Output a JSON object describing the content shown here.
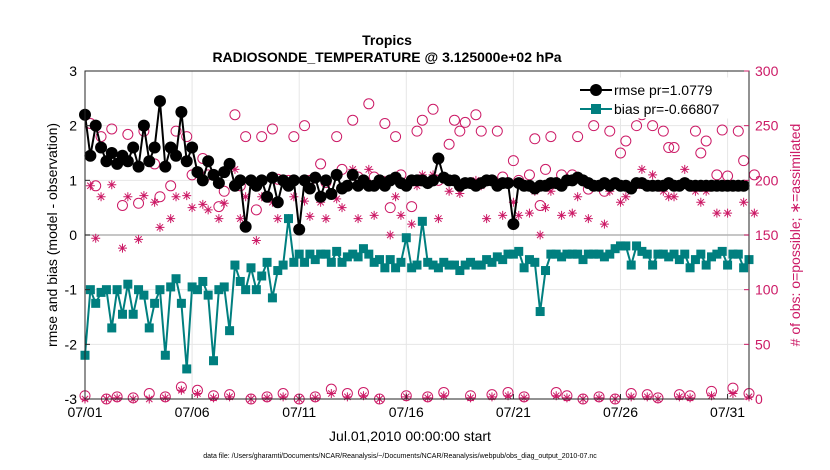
{
  "chart_data": {
    "type": "line",
    "title": "Tropics",
    "subtitle": "RADIOSONDE_TEMPERATURE @ 3.125000e+02 hPa",
    "xlabel": "Jul.01,2010 00:00:00 start",
    "ylabel": "rmse and bias (model - observation)",
    "ylabel_right": "# of obs: o=possible; ∗=assimilated",
    "footnote": "data file: /Users/gharamti/Documents/NCAR/Reanalysis/~/Documents/NCAR/Reanalysis/webpub/obs_diag_output_2010-07.nc",
    "xlim": [
      0,
      31
    ],
    "ylim": [
      -3,
      3
    ],
    "ylim_right": [
      0,
      300
    ],
    "x_ticks": [
      {
        "v": 0,
        "label": "07/01"
      },
      {
        "v": 5,
        "label": "07/06"
      },
      {
        "v": 10,
        "label": "07/11"
      },
      {
        "v": 15,
        "label": "07/16"
      },
      {
        "v": 20,
        "label": "07/21"
      },
      {
        "v": 25,
        "label": "07/26"
      },
      {
        "v": 30,
        "label": "07/31"
      }
    ],
    "y_ticks": [
      {
        "v": -3,
        "label": "-3"
      },
      {
        "v": -2,
        "label": "-2"
      },
      {
        "v": -1,
        "label": "-1"
      },
      {
        "v": 0,
        "label": "0"
      },
      {
        "v": 1,
        "label": "1"
      },
      {
        "v": 2,
        "label": "2"
      },
      {
        "v": 3,
        "label": "3"
      }
    ],
    "y_ticks_right": [
      {
        "v": 0,
        "label": "0"
      },
      {
        "v": 50,
        "label": "50"
      },
      {
        "v": 100,
        "label": "100"
      },
      {
        "v": 150,
        "label": "150"
      },
      {
        "v": 200,
        "label": "200"
      },
      {
        "v": 250,
        "label": "250"
      },
      {
        "v": 300,
        "label": "300"
      }
    ],
    "x_step": 0.25,
    "legend_position": "top-right",
    "grid": true,
    "colors": {
      "rmse": "#000000",
      "bias": "#007f7f",
      "obs": "#cc1a66",
      "zero": "#b3b3b3",
      "grid": "#e6e6e6"
    },
    "series": [
      {
        "name": "rmse pr=1.0779",
        "key": "rmse",
        "axis": "left",
        "values": [
          2.2,
          1.45,
          2.0,
          1.6,
          1.35,
          1.5,
          1.3,
          1.45,
          1.35,
          1.6,
          1.25,
          2.0,
          1.35,
          1.6,
          2.45,
          1.25,
          1.6,
          1.45,
          2.25,
          1.35,
          1.6,
          1.15,
          1.0,
          1.35,
          1.1,
          0.95,
          1.15,
          1.3,
          0.9,
          1.0,
          0.15,
          1.0,
          0.9,
          1.0,
          0.7,
          1.05,
          0.6,
          1.0,
          0.9,
          1.0,
          0.1,
          1.0,
          0.85,
          1.05,
          0.7,
          1.0,
          0.75,
          1.1,
          0.85,
          0.9,
          1.1,
          0.9,
          1.0,
          0.9,
          0.9,
          1.0,
          0.9,
          1.0,
          1.05,
          0.95,
          0.9,
          1.0,
          1.0,
          1.0,
          0.95,
          1.0,
          1.4,
          1.05,
          1.0,
          1.0,
          0.9,
          0.95,
          0.95,
          0.9,
          0.95,
          1.0,
          1.0,
          0.9,
          0.95,
          0.95,
          0.2,
          0.95,
          0.9,
          0.9,
          0.85,
          0.9,
          0.9,
          0.95,
          0.95,
          0.9,
          1.0,
          1.0,
          1.05,
          1.0,
          0.95,
          0.9,
          0.9,
          0.95,
          0.9,
          0.95,
          0.9,
          0.9,
          0.85,
          0.95,
          0.95,
          0.9,
          0.9,
          0.9,
          0.9,
          0.95,
          0.9,
          0.9,
          0.95,
          0.9,
          0.9,
          0.9,
          0.9,
          0.9,
          0.9,
          0.9,
          0.9,
          0.9,
          0.9,
          0.9
        ]
      },
      {
        "name": "bias pr=-0.66807",
        "key": "bias",
        "axis": "left",
        "values": [
          -2.2,
          -1.0,
          -1.25,
          -1.05,
          -1.0,
          -1.7,
          -1.0,
          -1.45,
          -0.9,
          -1.45,
          -1.0,
          -1.1,
          -1.7,
          -1.25,
          -1.0,
          -2.2,
          -0.95,
          -0.8,
          -1.25,
          -2.45,
          -0.95,
          -1.0,
          -0.85,
          -1.1,
          -2.3,
          -1.0,
          -0.95,
          -1.75,
          -0.55,
          -0.85,
          -1.0,
          -0.6,
          -1.0,
          -0.75,
          -0.5,
          -1.15,
          -0.65,
          -0.55,
          0.3,
          -0.5,
          -0.35,
          -0.5,
          -0.35,
          -0.45,
          -0.35,
          -0.35,
          -0.5,
          -0.3,
          -0.5,
          -0.4,
          -0.35,
          -0.4,
          -0.25,
          -0.35,
          -0.5,
          -0.45,
          -0.6,
          -0.45,
          -0.6,
          -0.5,
          -0.05,
          -0.6,
          -0.55,
          0.25,
          -0.5,
          -0.55,
          -0.6,
          -0.5,
          -0.55,
          -0.55,
          -0.65,
          -0.55,
          -0.5,
          -0.55,
          -0.55,
          -0.45,
          -0.5,
          -0.4,
          -0.45,
          -0.35,
          -0.35,
          -0.3,
          -0.6,
          -0.45,
          -0.5,
          -1.4,
          -0.65,
          -0.35,
          -0.35,
          -0.4,
          -0.35,
          -0.35,
          -0.35,
          -0.45,
          -0.35,
          -0.35,
          -0.35,
          -0.4,
          -0.35,
          -0.25,
          -0.2,
          -0.2,
          -0.55,
          -0.2,
          -0.3,
          -0.35,
          -0.55,
          -0.35,
          -0.35,
          -0.4,
          -0.35,
          -0.45,
          -0.35,
          -0.6,
          -0.45,
          -0.35,
          -0.55,
          -0.4,
          -0.35,
          -0.3,
          -0.55,
          -0.35,
          -0.35,
          -0.6,
          -0.45
        ]
      },
      {
        "name": "possible",
        "key": "possible",
        "axis": "right",
        "values": [
          3,
          252,
          195,
          240,
          0,
          247,
          2,
          177,
          242,
          1,
          179,
          245,
          5,
          215,
          185,
          2,
          195,
          245,
          11,
          240,
          205,
          8,
          220,
          205,
          3,
          176,
          190,
          4,
          260,
          195,
          240,
          0,
          173,
          240,
          2,
          247,
          201,
          5,
          200,
          240,
          0,
          250,
          200,
          2,
          215,
          198,
          9,
          240,
          210,
          5,
          255,
          203,
          6,
          270,
          203,
          0,
          252,
          175,
          240,
          205,
          3,
          176,
          245,
          255,
          2,
          265,
          200,
          6,
          233,
          255,
          245,
          253,
          3,
          260,
          245,
          200,
          4,
          245,
          203,
          6,
          218,
          200,
          2,
          205,
          238,
          177,
          210,
          240,
          6,
          205,
          3,
          205,
          240,
          0,
          192,
          250,
          2,
          190,
          245,
          0,
          225,
          236,
          5,
          250,
          260,
          4,
          250,
          1,
          245,
          230,
          230,
          4,
          265,
          3,
          245,
          225,
          236,
          7,
          205,
          246,
          204,
          10,
          245,
          218,
          5,
          205
        ]
      },
      {
        "name": "assimilated",
        "key": "assimilated",
        "axis": "right",
        "values": [
          0,
          195,
          147,
          185,
          0,
          196,
          1,
          138,
          185,
          0,
          146,
          186,
          0,
          180,
          157,
          1,
          165,
          185,
          8,
          186,
          175,
          5,
          178,
          173,
          1,
          165,
          179,
          2,
          210,
          165,
          185,
          0,
          145,
          185,
          1,
          180,
          165,
          2,
          165,
          185,
          0,
          181,
          167,
          1,
          180,
          165,
          5,
          183,
          175,
          2,
          210,
          165,
          3,
          210,
          168,
          0,
          200,
          150,
          185,
          168,
          2,
          160,
          195,
          205,
          1,
          205,
          165,
          3,
          190,
          198,
          188,
          198,
          1,
          200,
          195,
          165,
          2,
          195,
          168,
          3,
          180,
          168,
          1,
          170,
          190,
          150,
          175,
          190,
          3,
          168,
          1,
          170,
          185,
          0,
          165,
          195,
          1,
          160,
          190,
          0,
          180,
          185,
          2,
          195,
          210,
          2,
          205,
          0,
          190,
          185,
          185,
          2,
          210,
          1,
          190,
          180,
          190,
          3,
          170,
          195,
          170,
          5,
          195,
          180,
          2,
          170
        ]
      }
    ]
  }
}
